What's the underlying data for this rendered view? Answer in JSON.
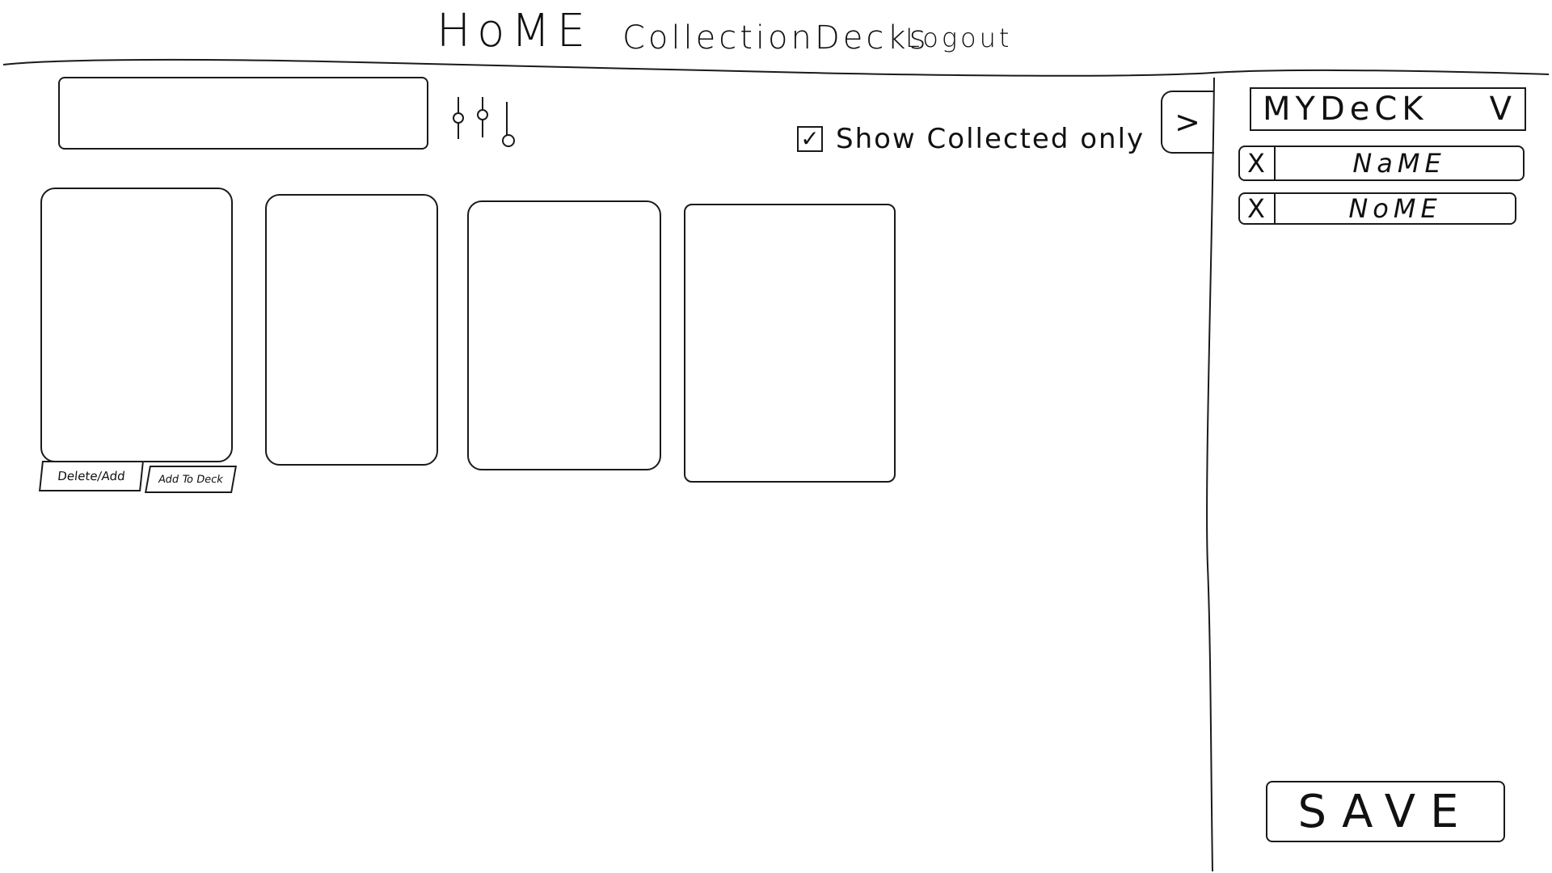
{
  "nav": {
    "home": "HoME",
    "collection": "Collection",
    "decks": "Decks",
    "logout": "Logout"
  },
  "search": {
    "value": "",
    "placeholder": ""
  },
  "filter": {
    "icon": "sliders-icon",
    "show_collected_label": "Show Collected only",
    "show_collected_checked": true,
    "check_mark": "✓"
  },
  "cards": [
    {
      "delete_add_label": "Delete/Add",
      "add_to_deck_label": "Add To Deck"
    },
    {},
    {},
    {}
  ],
  "deck_panel": {
    "toggle_label": ">",
    "selected_deck": "MYDeCK",
    "dropdown_chevron": "V",
    "items": [
      {
        "remove_label": "X",
        "name": "NaME"
      },
      {
        "remove_label": "X",
        "name": "NoME"
      }
    ],
    "save_label": "SAVE"
  }
}
